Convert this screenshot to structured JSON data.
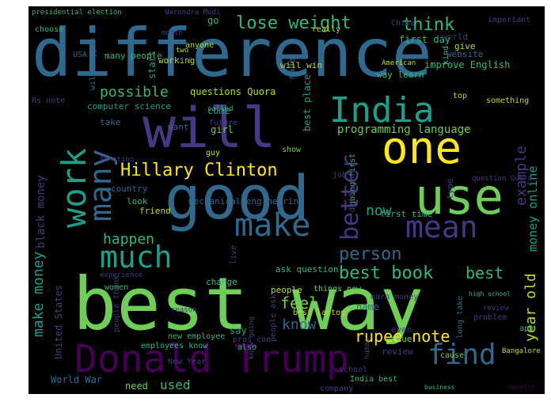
{
  "palette": {
    "background": "#000000",
    "page": "#ffffff",
    "yellow": "#fde725",
    "lime": "#b5de2b",
    "green": "#6ece58",
    "teal": "#35b779",
    "cyan": "#1f9e89",
    "blue": "#31688e",
    "indigo": "#443983",
    "purple": "#440154"
  },
  "words": [
    {
      "text": "difference",
      "color": "blue"
    },
    {
      "text": "best way",
      "color": "green"
    },
    {
      "text": "good",
      "color": "blue"
    },
    {
      "text": "will",
      "color": "indigo"
    },
    {
      "text": "one",
      "color": "yellow"
    },
    {
      "text": "use",
      "color": "green"
    },
    {
      "text": "Donald Trump",
      "color": "purple"
    },
    {
      "text": "India",
      "color": "cyan"
    },
    {
      "text": "work",
      "color": "cyan"
    },
    {
      "text": "many",
      "color": "blue"
    },
    {
      "text": "make",
      "color": "blue"
    },
    {
      "text": "mean",
      "color": "indigo"
    },
    {
      "text": "much",
      "color": "cyan"
    },
    {
      "text": "find",
      "color": "blue"
    },
    {
      "text": "better",
      "color": "indigo"
    },
    {
      "text": "Hillary Clinton",
      "color": "yellow"
    },
    {
      "text": "lose weight",
      "color": "teal"
    },
    {
      "text": "think",
      "color": "teal"
    },
    {
      "text": "possible",
      "color": "teal"
    },
    {
      "text": "person",
      "color": "blue"
    },
    {
      "text": "happen",
      "color": "teal"
    },
    {
      "text": "best book",
      "color": "teal"
    },
    {
      "text": "best",
      "color": "teal"
    },
    {
      "text": "make money",
      "color": "cyan"
    },
    {
      "text": "example",
      "color": "indigo"
    },
    {
      "text": "money online",
      "color": "cyan"
    },
    {
      "text": "programming language",
      "color": "green"
    },
    {
      "text": "rupee note",
      "color": "yellow"
    },
    {
      "text": "feel",
      "color": "green"
    },
    {
      "text": "know",
      "color": "blue"
    },
    {
      "text": "year old",
      "color": "lime"
    },
    {
      "text": "used",
      "color": "teal"
    },
    {
      "text": "now",
      "color": "cyan"
    },
    {
      "text": "black money",
      "color": "indigo"
    },
    {
      "text": "United States",
      "color": "indigo"
    },
    {
      "text": "World War",
      "color": "blue"
    },
    {
      "text": "need",
      "color": "green"
    },
    {
      "text": "questions Quora",
      "color": "lime"
    },
    {
      "text": "computer science",
      "color": "cyan"
    },
    {
      "text": "mechanical engineering",
      "color": "blue"
    },
    {
      "text": "best place",
      "color": "cyan"
    },
    {
      "text": "come",
      "color": "cyan"
    },
    {
      "text": "made",
      "color": "blue"
    },
    {
      "text": "start",
      "color": "cyan"
    },
    {
      "text": "go",
      "color": "teal"
    },
    {
      "text": "want",
      "color": "blue"
    },
    {
      "text": "take",
      "color": "blue"
    },
    {
      "text": "girl",
      "color": "green"
    },
    {
      "text": "future",
      "color": "indigo"
    },
    {
      "text": "country",
      "color": "blue"
    },
    {
      "text": "look",
      "color": "teal"
    },
    {
      "text": "friend",
      "color": "lime"
    },
    {
      "text": "change",
      "color": "teal"
    },
    {
      "text": "ask question",
      "color": "teal"
    },
    {
      "text": "name",
      "color": "blue"
    },
    {
      "text": "first time",
      "color": "teal"
    },
    {
      "text": "earn money",
      "color": "indigo"
    },
    {
      "text": "say",
      "color": "cyan"
    },
    {
      "text": "people",
      "color": "lime"
    },
    {
      "text": "review",
      "color": "indigo"
    },
    {
      "text": "even",
      "color": "indigo"
    },
    {
      "text": "true",
      "color": "green"
    },
    {
      "text": "first day",
      "color": "teal"
    },
    {
      "text": "improve English",
      "color": "teal"
    },
    {
      "text": "way learn",
      "color": "teal"
    },
    {
      "text": "going first",
      "color": "teal"
    },
    {
      "text": "different",
      "color": "indigo"
    },
    {
      "text": "New Year",
      "color": "indigo"
    },
    {
      "text": "company",
      "color": "indigo"
    },
    {
      "text": "school",
      "color": "indigo"
    },
    {
      "text": "also",
      "color": "teal"
    },
    {
      "text": "things new",
      "color": "green"
    },
    {
      "text": "cause",
      "color": "green"
    },
    {
      "text": "problem",
      "color": "indigo"
    },
    {
      "text": "long take",
      "color": "blue"
    },
    {
      "text": "India best",
      "color": "teal"
    },
    {
      "text": "pros con",
      "color": "indigo"
    },
    {
      "text": "best laptop",
      "color": "lime"
    },
    {
      "text": "new employee",
      "color": "teal"
    },
    {
      "text": "employees know",
      "color": "teal"
    },
    {
      "text": "people think",
      "color": "indigo"
    },
    {
      "text": "people ask",
      "color": "indigo"
    },
    {
      "text": "know going",
      "color": "indigo"
    },
    {
      "text": "many people",
      "color": "teal"
    },
    {
      "text": "will happen",
      "color": "blue"
    },
    {
      "text": "will win",
      "color": "lime"
    },
    {
      "text": "working",
      "color": "lime"
    },
    {
      "text": "anyone",
      "color": "lime"
    },
    {
      "text": "important",
      "color": "indigo"
    },
    {
      "text": "world",
      "color": "indigo"
    },
    {
      "text": "website",
      "color": "blue"
    },
    {
      "text": "give",
      "color": "lime"
    },
    {
      "text": "American",
      "color": "lime"
    },
    {
      "text": "live",
      "color": "indigo"
    },
    {
      "text": "job",
      "color": "indigo"
    },
    {
      "text": "human",
      "color": "indigo"
    },
    {
      "text": "really",
      "color": "lime"
    },
    {
      "text": "women",
      "color": "teal"
    },
    {
      "text": "experience",
      "color": "indigo"
    },
    {
      "text": "function",
      "color": "indigo"
    },
    {
      "text": "choose",
      "color": "teal"
    },
    {
      "text": "presidential election",
      "color": "teal"
    },
    {
      "text": "Narendra Modi",
      "color": "indigo"
    },
    {
      "text": "USA",
      "color": "blue"
    },
    {
      "text": "China",
      "color": "indigo"
    },
    {
      "text": "Rs note",
      "color": "indigo"
    },
    {
      "text": "month",
      "color": "indigo"
    },
    {
      "text": "two",
      "color": "lime"
    },
    {
      "text": "stop",
      "color": "indigo"
    },
    {
      "text": "type",
      "color": "indigo"
    },
    {
      "text": "top",
      "color": "lime"
    },
    {
      "text": "guy",
      "color": "lime"
    },
    {
      "text": "show",
      "color": "green"
    },
    {
      "text": "called",
      "color": "teal"
    },
    {
      "text": "kind",
      "color": "teal"
    },
    {
      "text": "reason",
      "color": "indigo"
    },
    {
      "text": "review",
      "color": "indigo"
    },
    {
      "text": "app",
      "color": "teal"
    },
    {
      "text": "Bangalore",
      "color": "lime"
    },
    {
      "text": "question Quora",
      "color": "indigo"
    },
    {
      "text": "something",
      "color": "lime"
    },
    {
      "text": "high school",
      "color": "teal"
    },
    {
      "text": "business",
      "color": "teal"
    },
    {
      "text": "benefit",
      "color": "purple"
    }
  ]
}
